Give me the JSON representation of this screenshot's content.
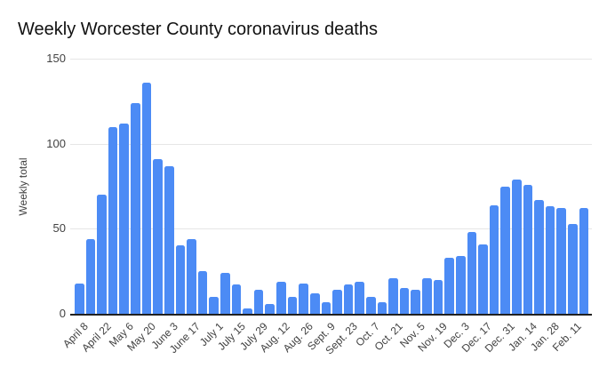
{
  "chart_data": {
    "type": "bar",
    "title": "Weekly Worcester County coronavirus deaths",
    "xlabel": "",
    "ylabel": "Weekly total",
    "ylim": [
      0,
      150
    ],
    "yticks": [
      0,
      50,
      100,
      150
    ],
    "grid": true,
    "legend": "none",
    "colors": {
      "bar": "#4c8bf5",
      "axis_line": "#212121",
      "gridline": "#e6e6e6",
      "tick_text": "#424242",
      "title_text": "#111111",
      "background": "#ffffff"
    },
    "tick_every": 2,
    "tick_labels": [
      "April 8",
      "April 22",
      "May 6",
      "May 20",
      "June 3",
      "June 17",
      "July 1",
      "July 15",
      "July 29",
      "Aug. 12",
      "Aug. 26",
      "Sept. 9",
      "Sept. 23",
      "Oct. 7",
      "Oct. 21",
      "Nov. 5",
      "Nov. 19",
      "Dec. 3",
      "Dec. 17",
      "Dec. 31",
      "Jan. 14",
      "Jan. 28",
      "Feb. 11"
    ],
    "values": [
      18,
      44,
      70,
      110,
      112,
      124,
      136,
      91,
      87,
      40,
      44,
      25,
      10,
      24,
      17,
      3,
      14,
      6,
      19,
      10,
      18,
      12,
      7,
      14,
      17,
      19,
      10,
      7,
      21,
      15,
      14,
      21,
      20,
      33,
      34,
      48,
      41,
      64,
      75,
      79,
      76,
      67,
      63,
      62,
      53,
      62
    ]
  }
}
